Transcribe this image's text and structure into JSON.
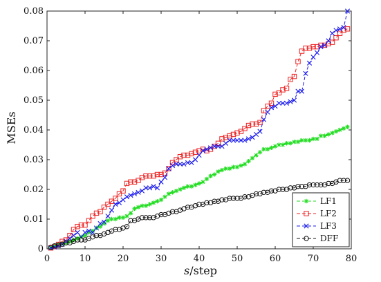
{
  "chart_data": {
    "type": "line",
    "title": "",
    "xlabel": "s/step",
    "ylabel": "MSEs",
    "xlim": [
      0,
      80
    ],
    "ylim": [
      0,
      0.08
    ],
    "xticks": [
      0,
      10,
      20,
      30,
      40,
      50,
      60,
      70,
      80
    ],
    "yticks": [
      0,
      0.01,
      0.02,
      0.03,
      0.04,
      0.05,
      0.06,
      0.07,
      0.08
    ],
    "xtick_labels": [
      "0",
      "10",
      "20",
      "30",
      "40",
      "50",
      "60",
      "70",
      "80"
    ],
    "ytick_labels": [
      "0",
      "0.01",
      "0.02",
      "0.03",
      "0.04",
      "0.05",
      "0.06",
      "0.07",
      "0.08"
    ],
    "grid": false,
    "legend_position": "bottom-right",
    "x": [
      1,
      2,
      3,
      4,
      5,
      6,
      7,
      8,
      9,
      10,
      11,
      12,
      13,
      14,
      15,
      16,
      17,
      18,
      19,
      20,
      21,
      22,
      23,
      24,
      25,
      26,
      27,
      28,
      29,
      30,
      31,
      32,
      33,
      34,
      35,
      36,
      37,
      38,
      39,
      40,
      41,
      42,
      43,
      44,
      45,
      46,
      47,
      48,
      49,
      50,
      51,
      52,
      53,
      54,
      55,
      56,
      57,
      58,
      59,
      60,
      61,
      62,
      63,
      64,
      65,
      66,
      67,
      68,
      69,
      70,
      71,
      72,
      73,
      74,
      75,
      76,
      77,
      78,
      79
    ],
    "series": [
      {
        "name": "LF1",
        "color": "#22dd22",
        "marker": "asterisk",
        "values": [
          0.0005,
          0.001,
          0.0015,
          0.0018,
          0.002,
          0.0025,
          0.003,
          0.0035,
          0.004,
          0.0045,
          0.0055,
          0.006,
          0.007,
          0.0075,
          0.0085,
          0.0095,
          0.01,
          0.01,
          0.0105,
          0.0105,
          0.011,
          0.012,
          0.0135,
          0.014,
          0.0145,
          0.0145,
          0.015,
          0.0155,
          0.016,
          0.0165,
          0.0175,
          0.0185,
          0.019,
          0.0195,
          0.02,
          0.0205,
          0.021,
          0.021,
          0.0215,
          0.022,
          0.0225,
          0.0235,
          0.0245,
          0.025,
          0.026,
          0.0265,
          0.027,
          0.027,
          0.0275,
          0.0275,
          0.028,
          0.0285,
          0.0295,
          0.0305,
          0.0315,
          0.0325,
          0.0335,
          0.0335,
          0.034,
          0.0345,
          0.035,
          0.035,
          0.0355,
          0.0355,
          0.036,
          0.036,
          0.0365,
          0.0365,
          0.0365,
          0.037,
          0.037,
          0.038,
          0.038,
          0.0385,
          0.039,
          0.0395,
          0.04,
          0.0405,
          0.041
        ]
      },
      {
        "name": "LF2",
        "color": "#ee2222",
        "marker": "square",
        "values": [
          0.0003,
          0.0008,
          0.0015,
          0.0025,
          0.003,
          0.0045,
          0.0065,
          0.0075,
          0.008,
          0.008,
          0.0095,
          0.011,
          0.012,
          0.0125,
          0.014,
          0.015,
          0.016,
          0.017,
          0.0185,
          0.0195,
          0.022,
          0.0225,
          0.0225,
          0.023,
          0.024,
          0.0245,
          0.0245,
          0.0245,
          0.025,
          0.025,
          0.0255,
          0.027,
          0.029,
          0.03,
          0.031,
          0.0315,
          0.0315,
          0.032,
          0.0325,
          0.033,
          0.0335,
          0.033,
          0.0335,
          0.0345,
          0.0355,
          0.037,
          0.0375,
          0.038,
          0.0385,
          0.039,
          0.0395,
          0.0405,
          0.0415,
          0.042,
          0.042,
          0.0425,
          0.0465,
          0.048,
          0.049,
          0.052,
          0.0525,
          0.0535,
          0.054,
          0.057,
          0.058,
          0.063,
          0.0665,
          0.0675,
          0.0675,
          0.068,
          0.068,
          0.0685,
          0.0685,
          0.069,
          0.0695,
          0.071,
          0.0725,
          0.0735,
          0.074
        ]
      },
      {
        "name": "LF3",
        "color": "#1a1aee",
        "marker": "x",
        "values": [
          0.0003,
          0.0006,
          0.001,
          0.0015,
          0.0025,
          0.0035,
          0.0045,
          0.0055,
          0.004,
          0.0055,
          0.006,
          0.0055,
          0.007,
          0.0085,
          0.009,
          0.011,
          0.013,
          0.015,
          0.0155,
          0.0165,
          0.0175,
          0.018,
          0.0185,
          0.019,
          0.0195,
          0.0205,
          0.0205,
          0.021,
          0.0205,
          0.0225,
          0.024,
          0.027,
          0.028,
          0.0285,
          0.0285,
          0.0285,
          0.029,
          0.029,
          0.03,
          0.0315,
          0.033,
          0.0335,
          0.034,
          0.0345,
          0.0345,
          0.0345,
          0.0355,
          0.0365,
          0.0365,
          0.0365,
          0.0365,
          0.0365,
          0.037,
          0.0375,
          0.0385,
          0.0395,
          0.0435,
          0.046,
          0.0475,
          0.048,
          0.049,
          0.049,
          0.049,
          0.0495,
          0.05,
          0.053,
          0.053,
          0.059,
          0.0625,
          0.0645,
          0.066,
          0.068,
          0.0685,
          0.07,
          0.0725,
          0.0735,
          0.074,
          0.0745,
          0.08
        ]
      },
      {
        "name": "DFF",
        "color": "#111111",
        "marker": "circle",
        "values": [
          0.0005,
          0.001,
          0.0012,
          0.0015,
          0.002,
          0.002,
          0.0025,
          0.003,
          0.003,
          0.003,
          0.0035,
          0.004,
          0.0045,
          0.0045,
          0.005,
          0.0055,
          0.006,
          0.0065,
          0.0065,
          0.007,
          0.0075,
          0.0095,
          0.0095,
          0.01,
          0.0105,
          0.0105,
          0.0105,
          0.0105,
          0.011,
          0.0115,
          0.0115,
          0.012,
          0.0125,
          0.0125,
          0.013,
          0.0135,
          0.014,
          0.014,
          0.0145,
          0.015,
          0.015,
          0.0155,
          0.0155,
          0.016,
          0.016,
          0.0165,
          0.0165,
          0.017,
          0.017,
          0.017,
          0.017,
          0.0175,
          0.0175,
          0.018,
          0.0185,
          0.0185,
          0.019,
          0.019,
          0.0195,
          0.0195,
          0.02,
          0.02,
          0.02,
          0.0205,
          0.0205,
          0.021,
          0.021,
          0.021,
          0.0215,
          0.0215,
          0.0215,
          0.0215,
          0.0215,
          0.022,
          0.022,
          0.0225,
          0.023,
          0.023,
          0.023
        ]
      }
    ]
  }
}
